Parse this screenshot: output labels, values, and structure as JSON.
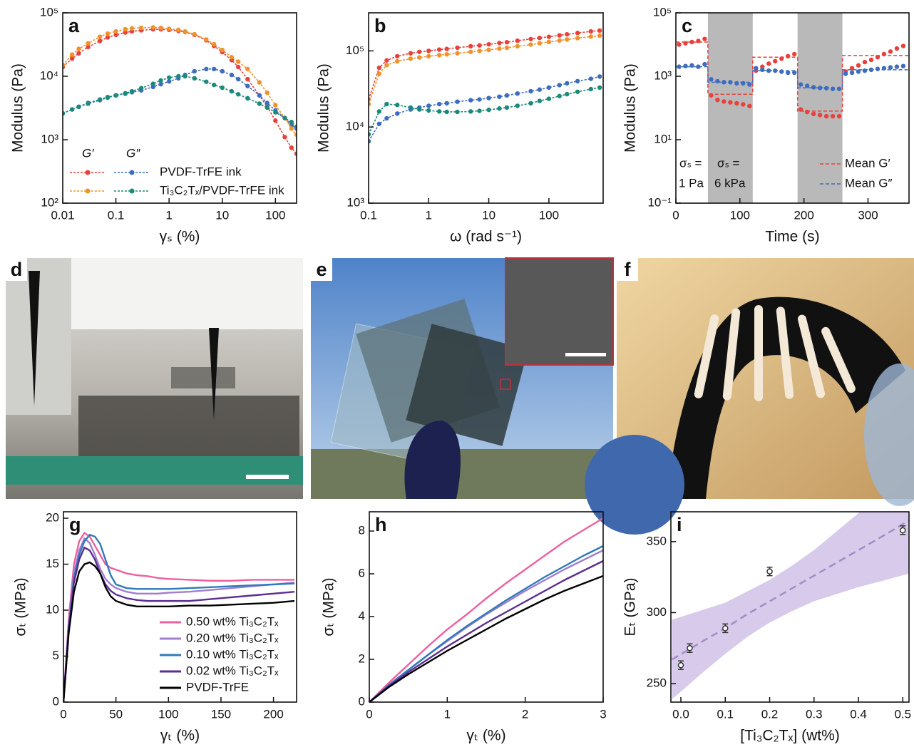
{
  "chart_data": [
    {
      "type": "line",
      "label": "a",
      "xlog": true,
      "ylog": true,
      "line_style": "dotted",
      "markers": true,
      "x_label": "γₛ (%)",
      "y_label": "Modulus (Pa)",
      "xlim": [
        0.01,
        250
      ],
      "ylim": [
        100,
        100000
      ],
      "xticks": [
        0.01,
        0.1,
        1,
        10,
        100
      ],
      "yticks": [
        {
          "value": 100,
          "label": "10²"
        },
        {
          "value": 1000,
          "label": "10³"
        },
        {
          "value": 10000,
          "label": "10⁴"
        },
        {
          "value": 100000,
          "label": "10⁵"
        }
      ],
      "moduli": [
        "G′",
        "G″"
      ],
      "x": [
        0.01,
        0.015,
        0.02,
        0.03,
        0.05,
        0.07,
        0.1,
        0.15,
        0.2,
        0.3,
        0.5,
        0.7,
        1,
        1.5,
        2,
        3,
        5,
        7,
        10,
        15,
        20,
        30,
        50,
        70,
        100,
        150,
        200,
        250
      ],
      "materials": [
        {
          "name": "PVDF-TrFE ink",
          "series": [
            {
              "color": "#e8413c",
              "values": [
                14000,
                19000,
                23000,
                29000,
                36000,
                41000,
                45000,
                49000,
                51000,
                53000,
                55000,
                55000,
                54000,
                52000,
                50000,
                45000,
                37000,
                30000,
                24000,
                18000,
                14000,
                9000,
                5000,
                3300,
                2000,
                1100,
                750,
                600
              ]
            },
            {
              "color": "#3e6dbf",
              "values": [
                2600,
                3000,
                3300,
                3700,
                4200,
                4600,
                5000,
                5300,
                5600,
                6000,
                6800,
                7500,
                8300,
                9300,
                10500,
                12000,
                13000,
                13000,
                12000,
                10500,
                9000,
                7000,
                5000,
                3800,
                2900,
                2200,
                1700,
                1500
              ]
            }
          ]
        },
        {
          "name": "Ti₃C₂Tₓ/PVDF-TrFE ink",
          "series": [
            {
              "color": "#f0922b",
              "values": [
                15000,
                22000,
                27000,
                33000,
                42000,
                47000,
                51000,
                55000,
                57000,
                58000,
                59000,
                58000,
                56000,
                54000,
                51000,
                46000,
                38000,
                32000,
                26000,
                20000,
                17000,
                13000,
                8000,
                5500,
                3500,
                2200,
                1500,
                1200
              ]
            },
            {
              "color": "#1a8a7a",
              "values": [
                2600,
                3000,
                3300,
                3800,
                4300,
                4700,
                5000,
                5400,
                5800,
                6500,
                7600,
                8600,
                9500,
                10000,
                10000,
                9300,
                8200,
                7300,
                6600,
                5800,
                5200,
                4500,
                3700,
                3200,
                2700,
                2200,
                1900,
                1600
              ]
            }
          ]
        }
      ]
    },
    {
      "type": "line",
      "label": "b",
      "xlog": true,
      "ylog": true,
      "line_style": "dotted",
      "markers": true,
      "x_label": "ω (rad s⁻¹)",
      "y_label": "Modulus (Pa)",
      "xlim": [
        0.1,
        800
      ],
      "ylim": [
        1000,
        316000
      ],
      "xticks": [
        0.1,
        1,
        10,
        100
      ],
      "yticks": [
        {
          "value": 1000,
          "label": "10³"
        },
        {
          "value": 10000,
          "label": "10⁴"
        },
        {
          "value": 100000,
          "label": "10⁵"
        }
      ],
      "x": [
        0.1,
        0.15,
        0.2,
        0.3,
        0.5,
        0.7,
        1,
        1.5,
        2,
        3,
        5,
        7,
        10,
        15,
        20,
        30,
        50,
        70,
        100,
        150,
        200,
        300,
        500,
        700
      ],
      "series": [
        {
          "color": "#e8413c",
          "values": [
            23000,
            60000,
            75000,
            85000,
            93000,
            97000,
            100000,
            104000,
            106000,
            110000,
            115000,
            118000,
            122000,
            127000,
            130000,
            136000,
            143000,
            148000,
            153000,
            160000,
            165000,
            172000,
            180000,
            185000
          ]
        },
        {
          "color": "#f0922b",
          "values": [
            20000,
            50000,
            65000,
            73000,
            79000,
            82000,
            85000,
            88000,
            90000,
            93000,
            97000,
            100000,
            103000,
            107000,
            110000,
            115000,
            121000,
            126000,
            131000,
            137000,
            141000,
            147000,
            154000,
            158000
          ]
        },
        {
          "color": "#3e6dbf",
          "values": [
            6500,
            11000,
            13000,
            15000,
            17000,
            18000,
            19000,
            20000,
            20500,
            21500,
            22500,
            23000,
            24000,
            25000,
            26000,
            27500,
            29500,
            31000,
            33000,
            35500,
            37500,
            40000,
            43000,
            46000
          ]
        },
        {
          "color": "#1a8a7a",
          "values": [
            8000,
            16000,
            20000,
            19500,
            18000,
            17000,
            16500,
            16000,
            15800,
            15800,
            16000,
            16300,
            16800,
            17500,
            18000,
            19000,
            20500,
            22000,
            23500,
            25500,
            27000,
            29000,
            31500,
            33000
          ]
        }
      ]
    },
    {
      "type": "scatter",
      "label": "c",
      "ylog": true,
      "x_label": "Time (s)",
      "y_label": "Modulus (Pa)",
      "xlim": [
        0,
        364
      ],
      "ylim": [
        0.1,
        100000
      ],
      "xticks": [
        0,
        100,
        200,
        300
      ],
      "yticks": [
        {
          "value": 0.1,
          "label": "10⁻¹"
        },
        {
          "value": 10,
          "label": "10¹"
        },
        {
          "value": 1000,
          "label": "10³"
        },
        {
          "value": 100000,
          "label": "10⁵"
        }
      ],
      "shaded_regions": [
        [
          50,
          120
        ],
        [
          190,
          260
        ]
      ],
      "annotations": [
        "σₛ =",
        "σₛ =",
        "1 Pa",
        "6 kPa"
      ],
      "x": [
        5,
        15,
        25,
        35,
        45,
        55,
        65,
        75,
        85,
        95,
        105,
        115,
        125,
        135,
        145,
        155,
        165,
        175,
        185,
        195,
        205,
        215,
        225,
        235,
        245,
        255,
        265,
        275,
        285,
        295,
        305,
        315,
        325,
        335,
        345,
        355
      ],
      "series": [
        {
          "color": "#e8413c",
          "values": [
            10000,
            11000,
            12000,
            13000,
            15000,
            250,
            180,
            160,
            150,
            140,
            130,
            115,
            1500,
            2000,
            2500,
            3000,
            3600,
            4300,
            5000,
            90,
            75,
            65,
            60,
            55,
            55,
            55,
            1400,
            1800,
            2200,
            2800,
            3300,
            4000,
            5000,
            6000,
            7500,
            9000
          ]
        },
        {
          "color": "#3e6dbf",
          "values": [
            2000,
            2100,
            2200,
            2000,
            2400,
            800,
            700,
            650,
            650,
            600,
            600,
            550,
            1800,
            1600,
            1500,
            1500,
            1400,
            1300,
            1300,
            550,
            500,
            450,
            430,
            420,
            400,
            400,
            1200,
            1300,
            1400,
            1500,
            1600,
            1700,
            1800,
            1900,
            2000,
            2100
          ]
        }
      ],
      "mean_series": [
        {
          "name": "Mean G′",
          "color": "#e8413c",
          "x": [
            0,
            50,
            50,
            120,
            120,
            190,
            190,
            260,
            260,
            364
          ],
          "values": [
            12000,
            12000,
            270,
            270,
            4000,
            4000,
            80,
            80,
            4500,
            4500
          ]
        },
        {
          "name": "Mean G″",
          "color": "#3e6dbf",
          "x": [
            0,
            50,
            50,
            120,
            120,
            190,
            190,
            260,
            260,
            364
          ],
          "values": [
            2000,
            2000,
            650,
            650,
            1500,
            1500,
            430,
            430,
            1600,
            1600
          ]
        }
      ]
    },
    {
      "type": "line",
      "label": "g",
      "x_label": "γₜ (%)",
      "y_label": "σₜ (MPa)",
      "xlim": [
        0,
        222
      ],
      "ylim": [
        0,
        20.7
      ],
      "xticks": [
        0,
        50,
        100,
        150,
        200
      ],
      "yticks": [
        0,
        5,
        10,
        15,
        20
      ],
      "x": [
        0,
        5,
        10,
        15,
        20,
        25,
        30,
        35,
        40,
        45,
        50,
        60,
        70,
        80,
        90,
        100,
        120,
        140,
        160,
        180,
        200,
        220
      ],
      "series": [
        {
          "name": "0.50 wt% Ti₃C₂Tₓ",
          "color": "#ee5fa0",
          "values": [
            0,
            9,
            15,
            17.5,
            18.4,
            18,
            17,
            16,
            15,
            14.6,
            14.4,
            14,
            13.8,
            13.7,
            13.5,
            13.4,
            13.3,
            13.2,
            13.2,
            13.3,
            13.3,
            13.3
          ]
        },
        {
          "name": "0.20 wt% Ti₃C₂Tₓ",
          "color": "#a07fcf",
          "values": [
            0,
            8.5,
            14,
            16.5,
            17.8,
            17.3,
            16,
            14.5,
            13.4,
            12.8,
            12.4,
            12,
            11.8,
            11.8,
            11.8,
            11.9,
            12,
            12.2,
            12.4,
            12.6,
            12.8,
            13
          ]
        },
        {
          "name": "0.10 wt% Ti₃C₂Tₓ",
          "color": "#2f7ab8",
          "values": [
            0,
            8,
            13.5,
            16,
            17.5,
            18.2,
            18,
            17.2,
            15.5,
            13.8,
            12.8,
            12.4,
            12.3,
            12.3,
            12.3,
            12.3,
            12.4,
            12.5,
            12.6,
            12.7,
            12.8,
            12.9
          ]
        },
        {
          "name": "0.02 wt% Ti₃C₂Tₓ",
          "color": "#5a2d91",
          "values": [
            0,
            8,
            13,
            15.5,
            16.8,
            16.5,
            15.5,
            14,
            12.8,
            12.1,
            11.7,
            11.3,
            11.1,
            11,
            11,
            11,
            11,
            11.2,
            11.4,
            11.6,
            11.8,
            12
          ]
        },
        {
          "name": "PVDF-TrFE",
          "color": "#000000",
          "values": [
            0,
            7.5,
            12,
            14.2,
            15,
            15.2,
            14.8,
            14,
            12.5,
            11.5,
            11,
            10.6,
            10.4,
            10.4,
            10.4,
            10.4,
            10.5,
            10.5,
            10.6,
            10.7,
            10.8,
            11
          ]
        }
      ]
    },
    {
      "type": "line",
      "label": "h",
      "x_label": "γₜ (%)",
      "y_label": "σₜ (MPa)",
      "xlim": [
        0,
        3
      ],
      "ylim": [
        0,
        8.9
      ],
      "xticks": [
        0,
        1,
        2,
        3
      ],
      "yticks": [
        0,
        2,
        4,
        6,
        8
      ],
      "x": [
        0,
        0.25,
        0.5,
        0.75,
        1,
        1.25,
        1.5,
        1.75,
        2,
        2.25,
        2.5,
        2.75,
        3
      ],
      "series": [
        {
          "color": "#ee5fa0",
          "values": [
            0,
            0.9,
            1.75,
            2.6,
            3.4,
            4.1,
            4.85,
            5.55,
            6.2,
            6.85,
            7.5,
            8.05,
            8.6
          ]
        },
        {
          "color": "#a07fcf",
          "values": [
            0,
            0.8,
            1.5,
            2.2,
            2.85,
            3.5,
            4.1,
            4.65,
            5.2,
            5.7,
            6.2,
            6.65,
            7.1
          ]
        },
        {
          "color": "#2f7ab8",
          "values": [
            0,
            0.8,
            1.5,
            2.2,
            2.9,
            3.55,
            4.15,
            4.75,
            5.3,
            5.85,
            6.35,
            6.85,
            7.3
          ]
        },
        {
          "color": "#5a2d91",
          "values": [
            0,
            0.75,
            1.4,
            2,
            2.6,
            3.15,
            3.7,
            4.2,
            4.7,
            5.2,
            5.7,
            6.15,
            6.6
          ]
        },
        {
          "color": "#000000",
          "values": [
            0,
            0.7,
            1.3,
            1.85,
            2.4,
            2.9,
            3.4,
            3.9,
            4.35,
            4.8,
            5.2,
            5.55,
            5.9
          ]
        }
      ]
    },
    {
      "type": "scatter",
      "label": "i",
      "x_label": "[Ti₃C₂Tₓ] (wt%)",
      "y_label": "Eₜ (GPa)",
      "xlim": [
        -0.0225,
        0.514
      ],
      "ylim": [
        237,
        371
      ],
      "xticks": [
        {
          "value": 0,
          "label": "0.0"
        },
        {
          "value": 0.1,
          "label": "0.1"
        },
        {
          "value": 0.2,
          "label": "0.2"
        },
        {
          "value": 0.3,
          "label": "0.3"
        },
        {
          "value": 0.4,
          "label": "0.4"
        },
        {
          "value": 0.5,
          "label": "0.5"
        }
      ],
      "yticks": [
        250,
        300,
        350
      ],
      "x": [
        0,
        0.02,
        0.1,
        0.2,
        0.5
      ],
      "series": [
        {
          "color": "#333333",
          "values": [
            263,
            275,
            289,
            329,
            358
          ],
          "errors": [
            3,
            3,
            3,
            3,
            3
          ]
        }
      ],
      "fit": {
        "color": "#a58bc8",
        "band_color": "#c2aee0",
        "x": [
          -0.02,
          0.05,
          0.1,
          0.15,
          0.2,
          0.25,
          0.3,
          0.35,
          0.4,
          0.45,
          0.52
        ],
        "values": [
          267,
          280,
          289,
          299,
          308,
          317,
          326,
          335,
          344,
          353,
          366
        ],
        "upper": [
          295,
          302,
          307,
          315,
          323,
          333,
          344,
          357,
          370,
          384,
          404
        ],
        "lower": [
          239,
          258,
          271,
          283,
          293,
          301,
          308,
          313,
          318,
          322,
          328
        ]
      }
    }
  ],
  "photos": [
    {
      "label": "d"
    },
    {
      "label": "e"
    },
    {
      "label": "f"
    }
  ]
}
